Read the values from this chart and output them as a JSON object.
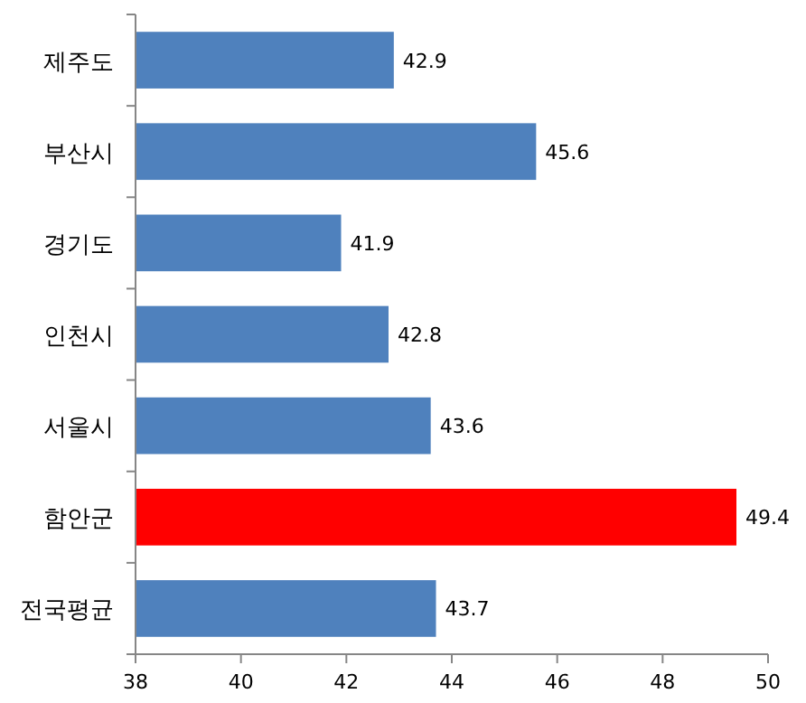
{
  "chart_data": {
    "type": "bar",
    "orientation": "horizontal",
    "categories": [
      "제주도",
      "부산시",
      "경기도",
      "인천시",
      "서울시",
      "함안군",
      "전국평균"
    ],
    "values": [
      42.9,
      45.6,
      41.9,
      42.8,
      43.6,
      49.4,
      43.7
    ],
    "colors": [
      "#4f81bd",
      "#4f81bd",
      "#4f81bd",
      "#4f81bd",
      "#4f81bd",
      "#ff0000",
      "#4f81bd"
    ],
    "xlim": [
      38,
      50
    ],
    "xticks": [
      38,
      40,
      42,
      44,
      46,
      48,
      50
    ],
    "data_labels": true,
    "grid": false
  }
}
